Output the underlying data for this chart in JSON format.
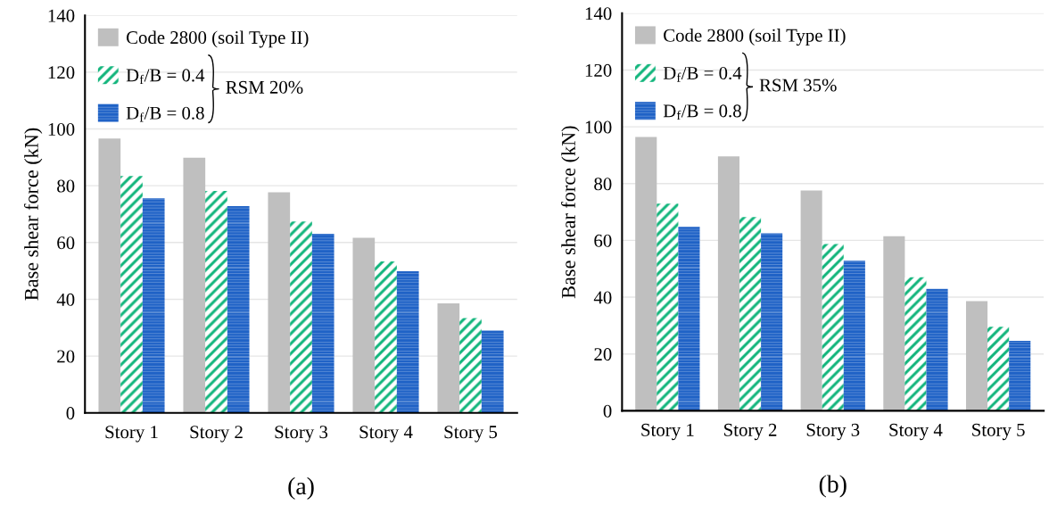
{
  "chart_data": [
    {
      "type": "bar",
      "ylabel": "Base shear force (kN)",
      "categories": [
        "Story 1",
        "Story 2",
        "Story 3",
        "Story 4",
        "Story 5"
      ],
      "series": [
        {
          "name": "Code 2800 (soil Type II)",
          "color": "#bfbfbf",
          "values": [
            96.6,
            89.9,
            77.7,
            61.7,
            38.6
          ]
        },
        {
          "name": "D$_{f}$/B = 0.4",
          "color": "#12b57c",
          "values": [
            83.4,
            78.2,
            67.4,
            53.3,
            33.4
          ]
        },
        {
          "name": "D$_{f}$/B = 0.8",
          "color": "#1f62c6",
          "values": [
            75.6,
            72.8,
            63.1,
            49.9,
            29.0
          ]
        }
      ],
      "ylim": [
        0,
        140
      ],
      "yticks": [
        0,
        20,
        40,
        60,
        80,
        100,
        120,
        140
      ],
      "grid": "y",
      "legend": "top left",
      "annotations": [
        "RSM 20%",
        "(a)"
      ]
    },
    {
      "type": "bar",
      "ylabel": "Base shear force (kN)",
      "categories": [
        "Story 1",
        "Story 2",
        "Story 3",
        "Story 4",
        "Story 5"
      ],
      "series": [
        {
          "name": "Code 2800 (soil Type II)",
          "color": "#bfbfbf",
          "values": [
            96.4,
            89.6,
            77.6,
            61.5,
            38.6
          ]
        },
        {
          "name": "D$_{f}$/B = 0.4",
          "color": "#12b57c",
          "values": [
            72.9,
            68.2,
            58.7,
            47.0,
            29.6
          ]
        },
        {
          "name": "D$_{f}$/B = 0.8",
          "color": "#1f62c6",
          "values": [
            64.8,
            62.5,
            52.8,
            42.9,
            24.6
          ]
        }
      ],
      "ylim": [
        0,
        140
      ],
      "yticks": [
        0,
        20,
        40,
        60,
        80,
        100,
        120,
        140
      ],
      "grid": "y",
      "legend": "top left",
      "annotations": [
        "RSM 35%",
        "(b)"
      ]
    }
  ]
}
